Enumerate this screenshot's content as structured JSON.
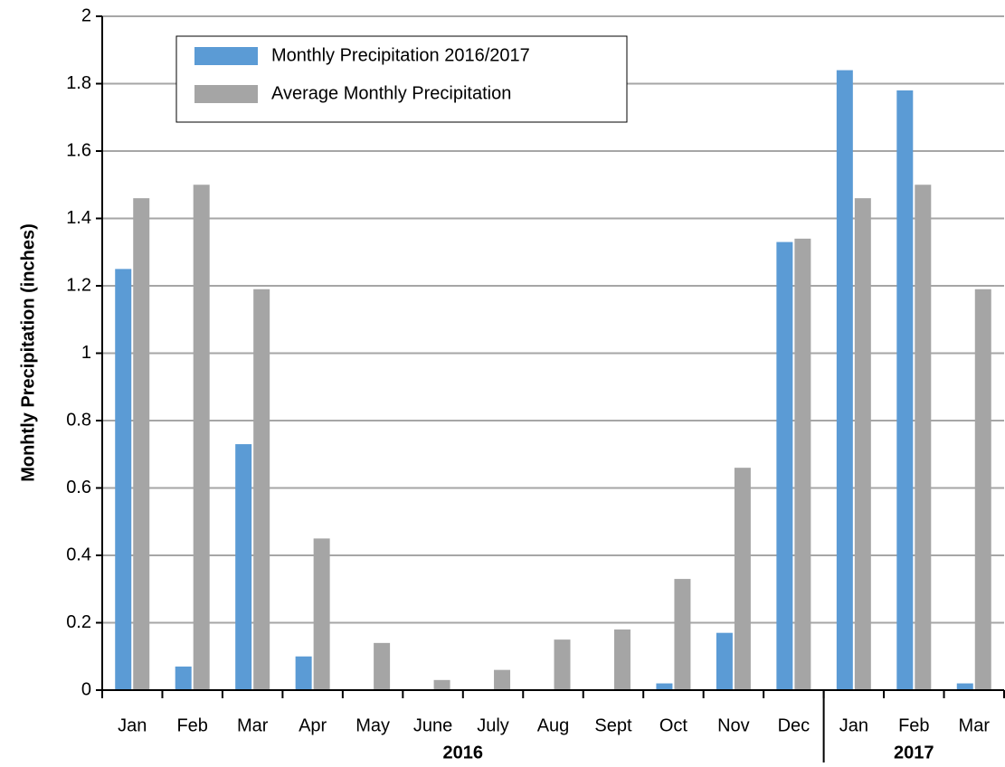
{
  "chart_data": {
    "type": "bar",
    "y_axis_label": "Monhtly Precipitation (inches)",
    "categories": [
      "Jan",
      "Feb",
      "Mar",
      "Apr",
      "May",
      "June",
      "July",
      "Aug",
      "Sept",
      "Oct",
      "Nov",
      "Dec",
      "Jan",
      "Feb",
      "Mar"
    ],
    "groups": [
      {
        "label": "2016",
        "count": 12
      },
      {
        "label": "2017",
        "count": 3
      }
    ],
    "series": [
      {
        "name": "Monthly Precipitation 2016/2017",
        "color": "#5b9bd5",
        "values": [
          1.25,
          0.07,
          0.73,
          0.1,
          0,
          0,
          0,
          0,
          0,
          0.02,
          0.17,
          1.33,
          1.84,
          1.78,
          0.02
        ]
      },
      {
        "name": "Average Monthly Precipitation",
        "color": "#a5a5a5",
        "values": [
          1.46,
          1.5,
          1.19,
          0.45,
          0.14,
          0.03,
          0.06,
          0.15,
          0.18,
          0.33,
          0.66,
          1.34,
          1.46,
          1.5,
          1.19
        ]
      }
    ],
    "ylim": [
      0,
      2
    ],
    "yticks": [
      0,
      0.2,
      0.4,
      0.6,
      0.8,
      1,
      1.2,
      1.4,
      1.6,
      1.8,
      2
    ],
    "grid": true,
    "legend": "top-left"
  }
}
